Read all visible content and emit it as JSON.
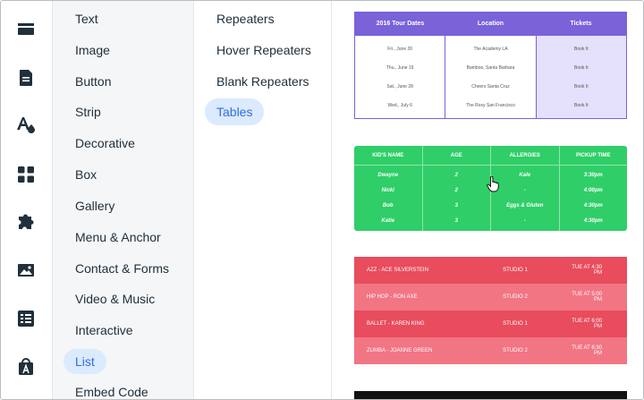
{
  "rail": {
    "items": [
      {
        "icon": "strip-icon"
      },
      {
        "icon": "page-icon"
      },
      {
        "icon": "design-icon"
      },
      {
        "icon": "apps-icon"
      },
      {
        "icon": "puzzle-icon"
      },
      {
        "icon": "image-icon"
      },
      {
        "icon": "list-icon"
      },
      {
        "icon": "store-icon"
      }
    ]
  },
  "categories": [
    {
      "label": "Text"
    },
    {
      "label": "Image"
    },
    {
      "label": "Button"
    },
    {
      "label": "Strip"
    },
    {
      "label": "Decorative"
    },
    {
      "label": "Box"
    },
    {
      "label": "Gallery"
    },
    {
      "label": "Menu & Anchor"
    },
    {
      "label": "Contact & Forms"
    },
    {
      "label": "Video & Music"
    },
    {
      "label": "Interactive"
    },
    {
      "label": "List",
      "active": true
    },
    {
      "label": "Embed Code"
    }
  ],
  "subcategories": [
    {
      "label": "Repeaters"
    },
    {
      "label": "Hover Repeaters"
    },
    {
      "label": "Blank Repeaters"
    },
    {
      "label": "Tables",
      "active": true
    }
  ],
  "table_tour": {
    "headers": [
      "2016 Tour Dates",
      "Location",
      "Tickets"
    ],
    "dates": [
      "Fri., June 20",
      "Thu., June 19",
      "Sat., June 28",
      "Wed., July 6"
    ],
    "locations": [
      "The Academy LA",
      "Bamboo, Santa Barbara",
      "Cheers Santa Cruz",
      "The Roxy San Francisco"
    ],
    "tickets": [
      "Book It",
      "Book It",
      "Book It",
      "Book It"
    ],
    "accent": "#7a62d9"
  },
  "table_kids": {
    "headers": [
      "KID'S NAME",
      "AGE",
      "ALLERGIES",
      "PICKUP TIME"
    ],
    "names": [
      "Dwayne",
      "Nicki",
      "Bob",
      "Katie"
    ],
    "ages": [
      "2",
      "2",
      "3",
      "3"
    ],
    "allergies": [
      "Kale",
      "-",
      "Eggs & Gluten",
      "-"
    ],
    "pickup": [
      "3:30pm",
      "4:00pm",
      "4:30pm",
      "4:30pm"
    ],
    "accent": "#2fce68"
  },
  "table_classes": {
    "rows": [
      {
        "name": "AZZ - ACE SILVERSTEIN",
        "studio": "STUDIO 1",
        "time": "TUE AT 4:30 PM"
      },
      {
        "name": "HIP HOP - RON AXE",
        "studio": "STUDIO 2",
        "time": "TUE AT 5:00 PM"
      },
      {
        "name": "BALLET - KAREN KING",
        "studio": "STUDIO 1",
        "time": "TUE AT 6:00 PM"
      },
      {
        "name": "ZUMBA - JOANNE GREEN",
        "studio": "STUDIO 2",
        "time": "TUE AT 6:30 PM"
      }
    ],
    "row_colors": [
      "#e84c5d",
      "#f27584",
      "#e84c5d",
      "#f27584"
    ]
  }
}
